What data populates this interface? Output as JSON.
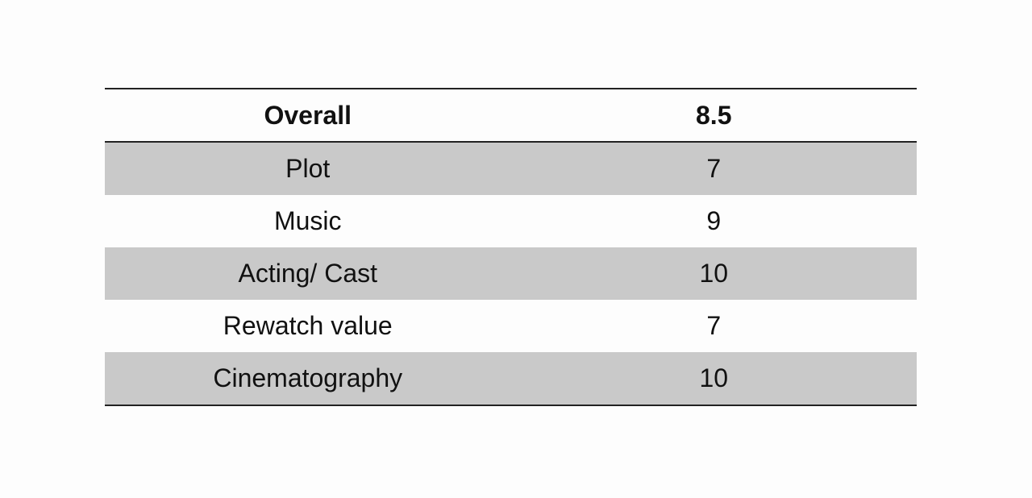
{
  "table": {
    "header": [
      "Overall",
      "8.5"
    ],
    "rows": [
      [
        "Plot",
        "7"
      ],
      [
        "Music",
        "9"
      ],
      [
        "Acting/ Cast",
        "10"
      ],
      [
        "Rewatch value",
        "7"
      ],
      [
        "Cinematography",
        "10"
      ]
    ]
  }
}
